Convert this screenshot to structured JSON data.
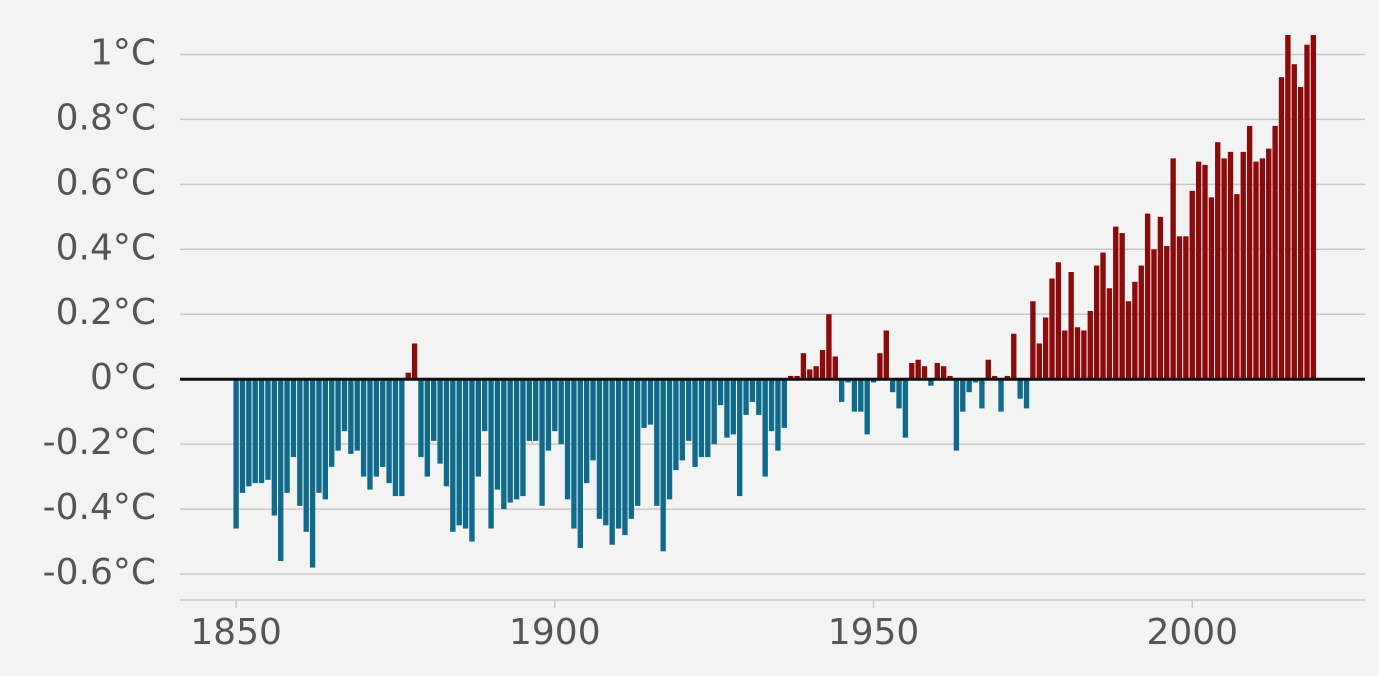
{
  "chart_data": {
    "type": "bar",
    "x": [
      1850,
      1851,
      1852,
      1853,
      1854,
      1855,
      1856,
      1857,
      1858,
      1859,
      1860,
      1861,
      1862,
      1863,
      1864,
      1865,
      1866,
      1867,
      1868,
      1869,
      1870,
      1871,
      1872,
      1873,
      1874,
      1875,
      1876,
      1877,
      1878,
      1879,
      1880,
      1881,
      1882,
      1883,
      1884,
      1885,
      1886,
      1887,
      1888,
      1889,
      1890,
      1891,
      1892,
      1893,
      1894,
      1895,
      1896,
      1897,
      1898,
      1899,
      1900,
      1901,
      1902,
      1903,
      1904,
      1905,
      1906,
      1907,
      1908,
      1909,
      1910,
      1911,
      1912,
      1913,
      1914,
      1915,
      1916,
      1917,
      1918,
      1919,
      1920,
      1921,
      1922,
      1923,
      1924,
      1925,
      1926,
      1927,
      1928,
      1929,
      1930,
      1931,
      1932,
      1933,
      1934,
      1935,
      1936,
      1937,
      1938,
      1939,
      1940,
      1941,
      1942,
      1943,
      1944,
      1945,
      1946,
      1947,
      1948,
      1949,
      1950,
      1951,
      1952,
      1953,
      1954,
      1955,
      1956,
      1957,
      1958,
      1959,
      1960,
      1961,
      1962,
      1963,
      1964,
      1965,
      1966,
      1967,
      1968,
      1969,
      1970,
      1971,
      1972,
      1973,
      1974,
      1975,
      1976,
      1977,
      1978,
      1979,
      1980,
      1981,
      1982,
      1983,
      1984,
      1985,
      1986,
      1987,
      1988,
      1989,
      1990,
      1991,
      1992,
      1993,
      1994,
      1995,
      1996,
      1997,
      1998,
      1999,
      2000,
      2001,
      2002,
      2003,
      2004,
      2005,
      2006,
      2007,
      2008,
      2009,
      2010,
      2011,
      2012,
      2013,
      2014,
      2015,
      2016,
      2017,
      2018,
      2019
    ],
    "values": [
      -0.46,
      -0.35,
      -0.33,
      -0.32,
      -0.32,
      -0.31,
      -0.42,
      -0.56,
      -0.35,
      -0.24,
      -0.39,
      -0.47,
      -0.58,
      -0.35,
      -0.37,
      -0.27,
      -0.22,
      -0.16,
      -0.23,
      -0.22,
      -0.3,
      -0.34,
      -0.3,
      -0.27,
      -0.32,
      -0.36,
      -0.36,
      0.02,
      0.11,
      -0.24,
      -0.3,
      -0.19,
      -0.26,
      -0.33,
      -0.47,
      -0.45,
      -0.46,
      -0.5,
      -0.3,
      -0.16,
      -0.46,
      -0.34,
      -0.4,
      -0.38,
      -0.37,
      -0.36,
      -0.19,
      -0.19,
      -0.39,
      -0.22,
      -0.16,
      -0.2,
      -0.37,
      -0.46,
      -0.52,
      -0.32,
      -0.25,
      -0.43,
      -0.45,
      -0.51,
      -0.46,
      -0.48,
      -0.43,
      -0.39,
      -0.15,
      -0.14,
      -0.39,
      -0.53,
      -0.37,
      -0.28,
      -0.25,
      -0.19,
      -0.27,
      -0.24,
      -0.24,
      -0.2,
      -0.08,
      -0.18,
      -0.17,
      -0.36,
      -0.11,
      -0.07,
      -0.11,
      -0.3,
      -0.16,
      -0.22,
      -0.15,
      0.01,
      0.01,
      0.08,
      0.03,
      0.04,
      0.09,
      0.2,
      0.07,
      -0.07,
      -0.01,
      -0.1,
      -0.1,
      -0.17,
      -0.01,
      0.08,
      0.15,
      -0.04,
      -0.09,
      -0.18,
      0.05,
      0.06,
      0.04,
      -0.02,
      0.05,
      0.04,
      0.01,
      -0.22,
      -0.1,
      -0.04,
      -0.01,
      -0.09,
      0.06,
      0.01,
      -0.1,
      0.01,
      0.14,
      -0.06,
      -0.09,
      0.24,
      0.11,
      0.19,
      0.31,
      0.36,
      0.15,
      0.33,
      0.16,
      0.15,
      0.21,
      0.35,
      0.39,
      0.28,
      0.47,
      0.45,
      0.24,
      0.3,
      0.35,
      0.51,
      0.4,
      0.5,
      0.41,
      0.68,
      0.44,
      0.44,
      0.58,
      0.67,
      0.66,
      0.56,
      0.73,
      0.68,
      0.7,
      0.57,
      0.7,
      0.78,
      0.67,
      0.68,
      0.71,
      0.78,
      0.93,
      1.06,
      0.97,
      0.9,
      1.03,
      1.06
    ],
    "positive_color": "#8c0a0a",
    "negative_color": "#0f6a8b",
    "xlim": [
      1841.2,
      2027.1
    ],
    "xticks": [
      1850,
      1900,
      1950,
      2000
    ],
    "ylim": [
      -0.68,
      1.1
    ],
    "yticks": [
      {
        "value": -0.6,
        "label": "-0.6°C"
      },
      {
        "value": -0.4,
        "label": "-0.4°C"
      },
      {
        "value": -0.2,
        "label": "-0.2°C"
      },
      {
        "value": 0,
        "label": "0°C"
      },
      {
        "value": 0.2,
        "label": "0.2°C"
      },
      {
        "value": 0.4,
        "label": "0.4°C"
      },
      {
        "value": 0.6,
        "label": "0.6°C"
      },
      {
        "value": 0.8,
        "label": "0.8°C"
      },
      {
        "value": 1,
        "label": "1°C"
      }
    ],
    "grid": true
  }
}
